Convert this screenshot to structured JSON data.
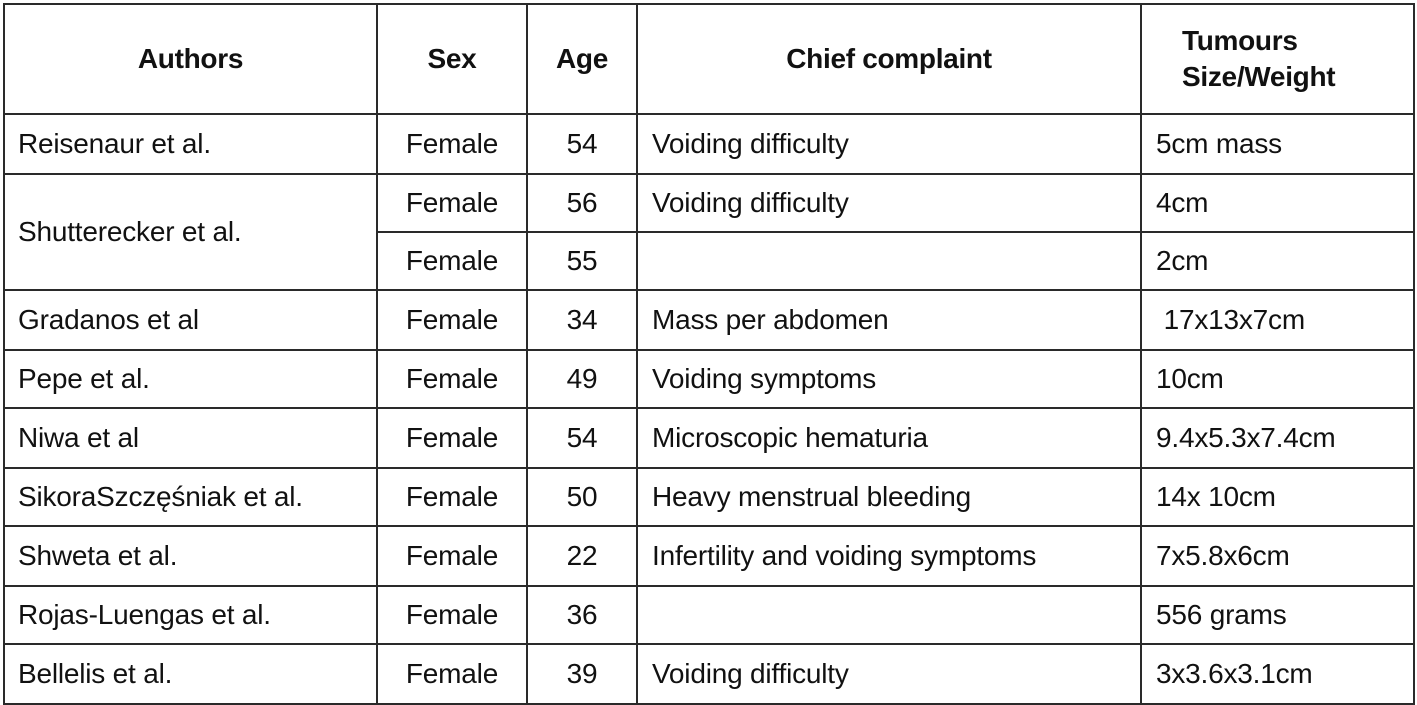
{
  "headers": {
    "authors": "Authors",
    "sex": "Sex",
    "age": "Age",
    "complaint": "Chief complaint",
    "size_line1": "Tumours",
    "size_line2": "Size/Weight"
  },
  "rows": [
    {
      "author": "Reisenaur et al.",
      "sex": "Female",
      "age": "54",
      "complaint": "Voiding difficulty",
      "size": "5cm mass"
    },
    {
      "author": "Shutterecker et al.",
      "sex": "Female",
      "age": "56",
      "complaint": "Voiding difficulty",
      "size": "4cm"
    },
    {
      "author": "",
      "sex": "Female",
      "age": "55",
      "complaint": "",
      "size": "2cm"
    },
    {
      "author": "Gradanos et al",
      "sex": "Female",
      "age": "34",
      "complaint": "Mass per abdomen",
      "size": " 17x13x7cm"
    },
    {
      "author": "Pepe et al.",
      "sex": "Female",
      "age": "49",
      "complaint": "Voiding symptoms",
      "size": "10cm"
    },
    {
      "author": "Niwa et al",
      "sex": "Female",
      "age": "54",
      "complaint": "Microscopic hematuria",
      "size": "9.4x5.3x7.4cm"
    },
    {
      "author": "SikoraSzczęśniak et al.",
      "sex": "Female",
      "age": "50",
      "complaint": "Heavy menstrual bleeding",
      "size": "14x 10cm"
    },
    {
      "author": "Shweta et al.",
      "sex": "Female",
      "age": "22",
      "complaint": "Infertility and voiding symptoms",
      "size": "7x5.8x6cm"
    },
    {
      "author": "Rojas-Luengas et al.",
      "sex": "Female",
      "age": "36",
      "complaint": "",
      "size": "556 grams"
    },
    {
      "author": "Bellelis et al.",
      "sex": "Female",
      "age": "39",
      "complaint": "Voiding difficulty",
      "size": "3x3.6x3.1cm"
    }
  ]
}
